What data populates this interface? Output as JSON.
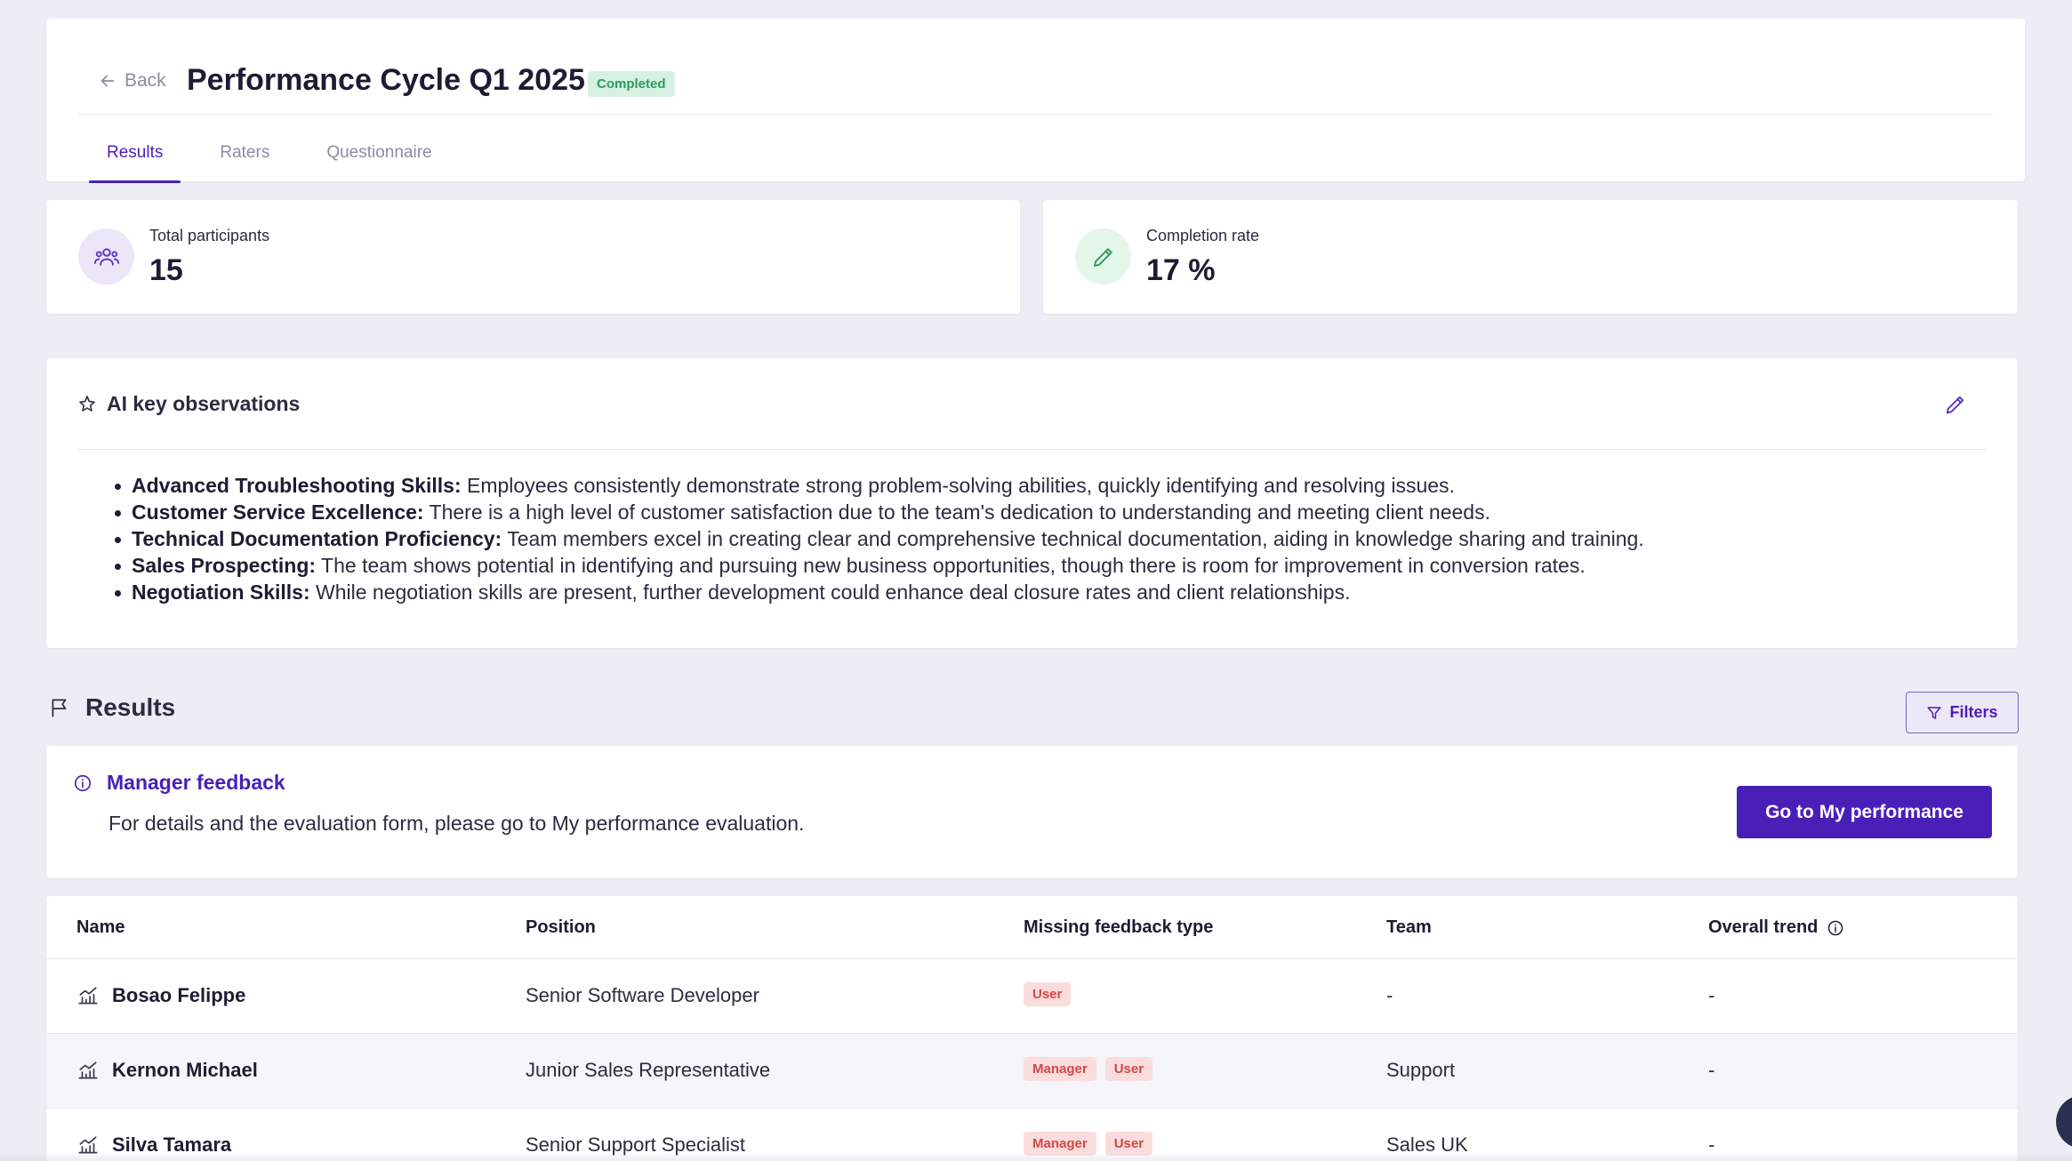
{
  "header": {
    "back_label": "Back",
    "title": "Performance Cycle Q1 2025",
    "status": "Completed",
    "tabs": [
      {
        "label": "Results",
        "active": true
      },
      {
        "label": "Raters",
        "active": false
      },
      {
        "label": "Questionnaire",
        "active": false
      }
    ]
  },
  "stats": {
    "participants": {
      "label": "Total participants",
      "value": "15",
      "icon": "users-icon"
    },
    "completion": {
      "label": "Completion rate",
      "value": "17 %",
      "icon": "pencil-icon"
    }
  },
  "ai": {
    "title": "AI key observations",
    "observations": [
      {
        "label": "Advanced Troubleshooting Skills:",
        "text": " Employees consistently demonstrate strong problem-solving abilities, quickly identifying and resolving issues."
      },
      {
        "label": "Customer Service Excellence:",
        "text": " There is a high level of customer satisfaction due to the team's dedication to understanding and meeting client needs."
      },
      {
        "label": "Technical Documentation Proficiency:",
        "text": " Team members excel in creating clear and comprehensive technical documentation, aiding in knowledge sharing and training."
      },
      {
        "label": "Sales Prospecting:",
        "text": " The team shows potential in identifying and pursuing new business opportunities, though there is room for improvement in conversion rates."
      },
      {
        "label": "Negotiation Skills:",
        "text": " While negotiation skills are present, further development could enhance deal closure rates and client relationships."
      }
    ]
  },
  "results": {
    "title": "Results",
    "filters_label": "Filters"
  },
  "manager_feedback": {
    "title": "Manager feedback",
    "text": "For details and the evaluation form, please go to My performance evaluation.",
    "button": "Go to My performance"
  },
  "table": {
    "columns": {
      "name": "Name",
      "position": "Position",
      "missing": "Missing feedback type",
      "team": "Team",
      "trend": "Overall trend"
    },
    "rows": [
      {
        "name": "Bosao Felippe",
        "position": "Senior Software Developer",
        "missing": [
          "User"
        ],
        "team": "-",
        "trend": "-"
      },
      {
        "name": "Kernon Michael",
        "position": "Junior Sales Representative",
        "missing": [
          "Manager",
          "User"
        ],
        "team": "Support",
        "trend": "-"
      },
      {
        "name": "Silva Tamara",
        "position": "Senior Support Specialist",
        "missing": [
          "Manager",
          "User"
        ],
        "team": "Sales UK",
        "trend": "-"
      }
    ]
  },
  "colors": {
    "accent": "#4a1fb8",
    "badge_green_bg": "#d5f1e1",
    "tag_red_bg": "#fbdcdc",
    "page_bg": "#ededf5"
  }
}
